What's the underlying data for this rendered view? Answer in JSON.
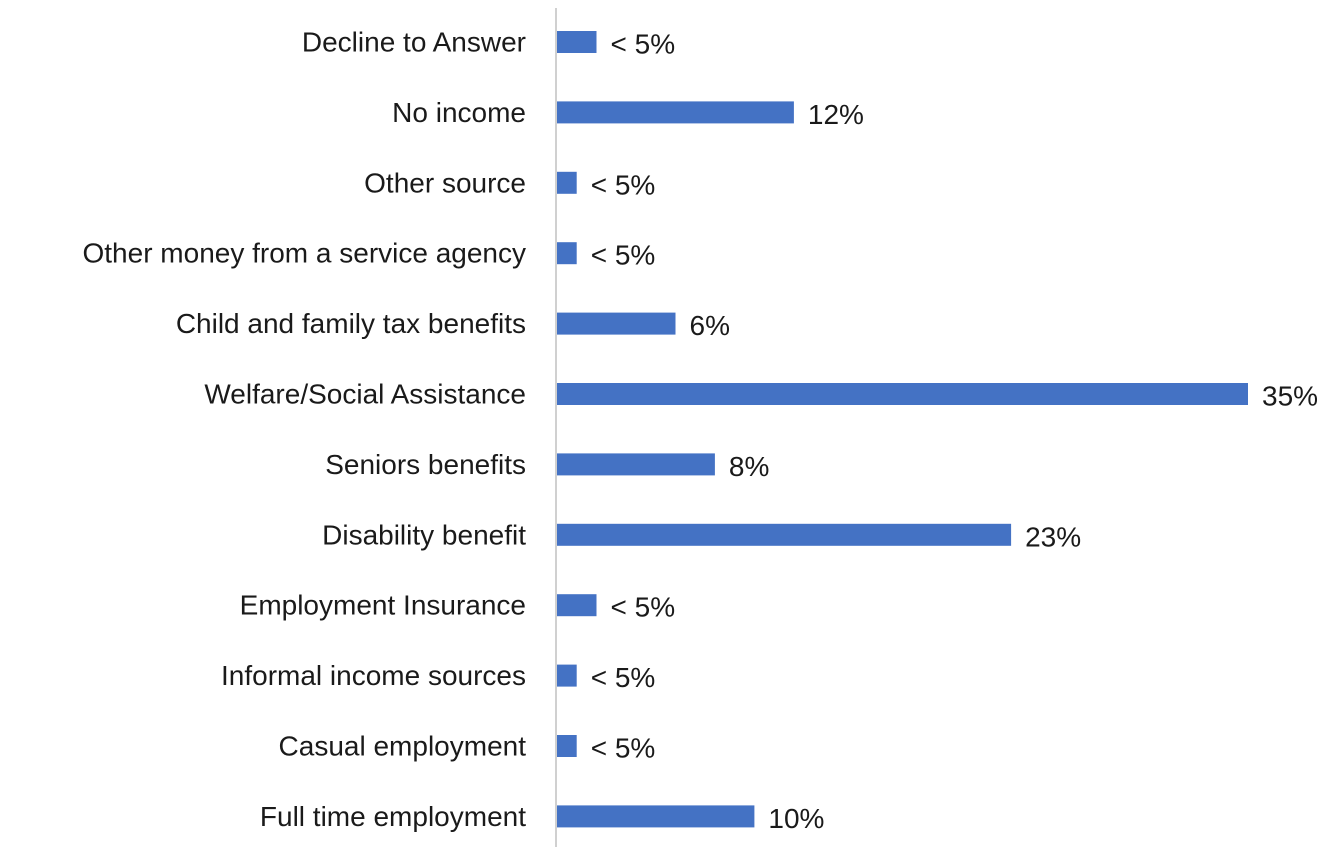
{
  "chart_data": {
    "type": "bar",
    "orientation": "horizontal",
    "categories": [
      "Decline to Answer",
      "No income",
      "Other source",
      "Other money from a service agency",
      "Child and family tax benefits",
      "Welfare/Social Assistance",
      "Seniors benefits",
      "Disability benefit",
      "Employment Insurance",
      "Informal income sources",
      "Casual employment",
      "Full time employment"
    ],
    "values": [
      2,
      12,
      1,
      1,
      6,
      35,
      8,
      23,
      2,
      1,
      1,
      10
    ],
    "data_labels": [
      "< 5%",
      "12%",
      "< 5%",
      "< 5%",
      "6%",
      "35%",
      "8%",
      "23%",
      "< 5%",
      "< 5%",
      "< 5%",
      "10%"
    ],
    "unit": "%",
    "xlim": [
      0,
      35
    ],
    "grid": false,
    "legend": "none",
    "colors": {
      "bar": "#4472C4",
      "axis": "#d0d0d0",
      "text": "#1a1a1a"
    }
  }
}
